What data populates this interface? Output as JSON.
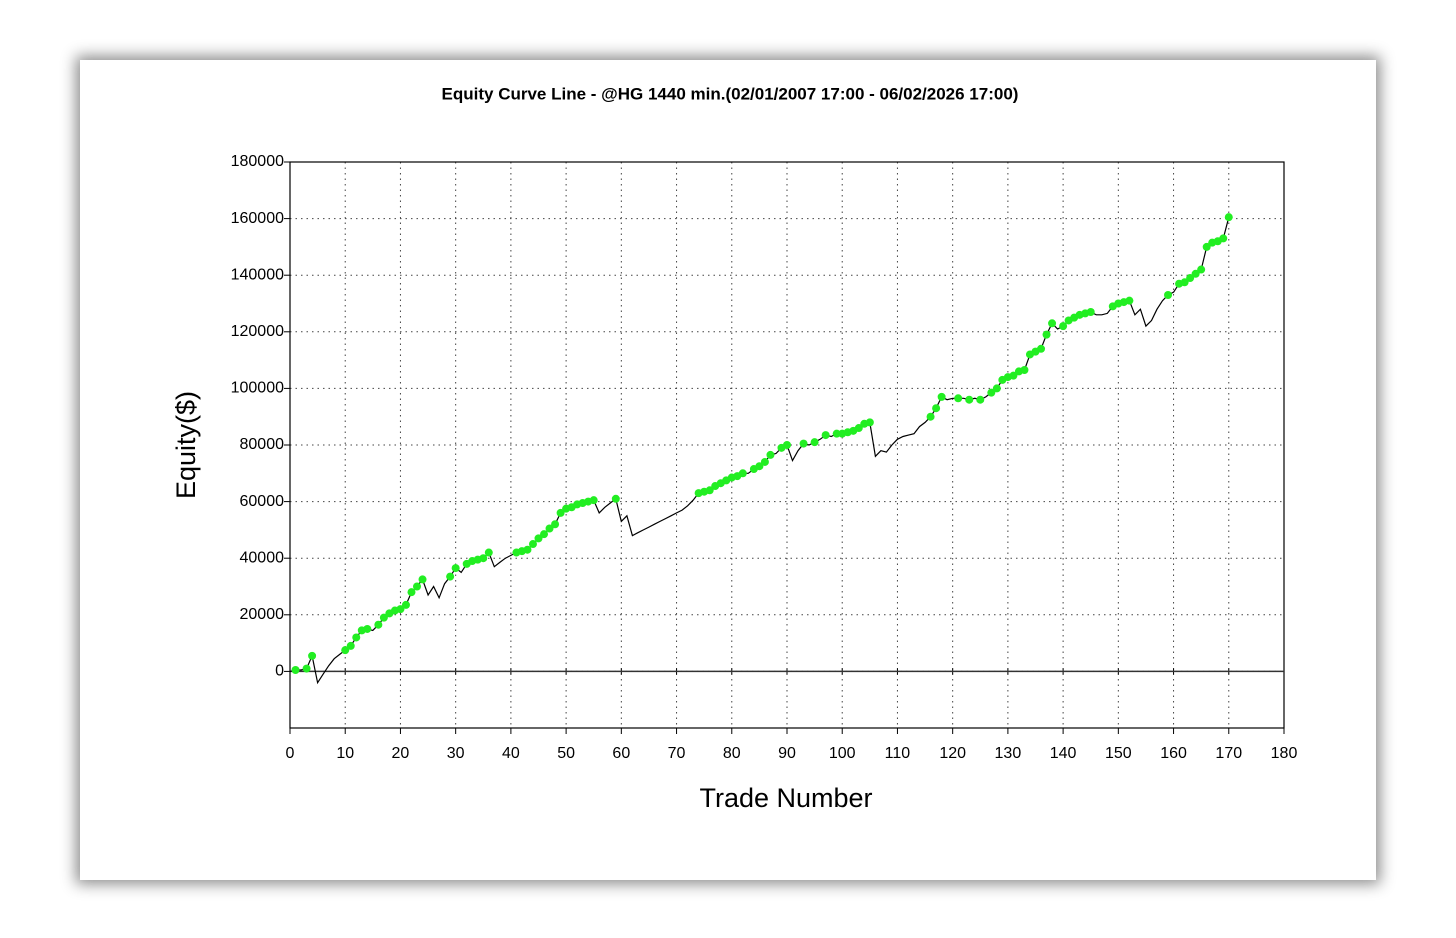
{
  "chart_data": {
    "type": "line",
    "title": "Equity Curve Line - @HG 1440 min.(02/01/2007 17:00 - 06/02/2026 17:00)",
    "x_label": "Trade Number",
    "y_label": "Equity($)",
    "xlim": [
      0,
      180
    ],
    "xticks": [
      0,
      10,
      20,
      30,
      40,
      50,
      60,
      70,
      80,
      90,
      100,
      110,
      120,
      130,
      140,
      150,
      160,
      170,
      180
    ],
    "ylim": [
      -20000,
      180000
    ],
    "yticks": [
      0,
      20000,
      40000,
      60000,
      80000,
      100000,
      120000,
      140000,
      160000,
      180000
    ],
    "grid": true,
    "x": [
      0,
      1,
      2,
      3,
      4,
      5,
      6,
      7,
      8,
      9,
      10,
      11,
      12,
      13,
      14,
      15,
      16,
      17,
      18,
      19,
      20,
      21,
      22,
      23,
      24,
      25,
      26,
      27,
      28,
      29,
      30,
      31,
      32,
      33,
      34,
      35,
      36,
      37,
      38,
      39,
      40,
      41,
      42,
      43,
      44,
      45,
      46,
      47,
      48,
      49,
      50,
      51,
      52,
      53,
      54,
      55,
      56,
      57,
      58,
      59,
      60,
      61,
      62,
      63,
      64,
      65,
      66,
      67,
      68,
      69,
      70,
      71,
      72,
      73,
      74,
      75,
      76,
      77,
      78,
      79,
      80,
      81,
      82,
      83,
      84,
      85,
      86,
      87,
      88,
      89,
      90,
      91,
      92,
      93,
      94,
      95,
      96,
      97,
      98,
      99,
      100,
      101,
      102,
      103,
      104,
      105,
      106,
      107,
      108,
      109,
      110,
      111,
      112,
      113,
      114,
      115,
      116,
      117,
      118,
      119,
      120,
      121,
      122,
      123,
      124,
      125,
      126,
      127,
      128,
      129,
      130,
      131,
      132,
      133,
      134,
      135,
      136,
      137,
      138,
      139,
      140,
      141,
      142,
      143,
      144,
      145,
      146,
      147,
      148,
      149,
      150,
      151,
      152,
      153,
      154,
      155,
      156,
      157,
      158,
      159,
      160,
      161,
      162,
      163,
      164,
      165,
      166,
      167,
      168,
      169,
      170
    ],
    "series": [
      {
        "color": "#000000",
        "values": [
          0,
          500,
          500,
          1000,
          5500,
          -4000,
          -1000,
          2000,
          4500,
          6000,
          7500,
          9000,
          12000,
          14500,
          15000,
          14500,
          16500,
          19000,
          20500,
          21500,
          22000,
          23500,
          28000,
          30000,
          32500,
          27000,
          30000,
          26000,
          31000,
          33500,
          36500,
          35000,
          38000,
          39000,
          39500,
          40000,
          42000,
          37000,
          38500,
          40000,
          41000,
          42000,
          42500,
          43000,
          45000,
          47000,
          48500,
          50500,
          52000,
          56000,
          57500,
          58000,
          59000,
          59500,
          60000,
          60500,
          56000,
          58000,
          59500,
          61000,
          53000,
          55000,
          48000,
          49000,
          50000,
          51000,
          52000,
          53000,
          54000,
          55000,
          56000,
          57000,
          58500,
          60500,
          63000,
          63500,
          64000,
          65500,
          66500,
          67500,
          68500,
          69000,
          70000,
          70000,
          71500,
          72500,
          74000,
          76500,
          77000,
          79000,
          80000,
          74500,
          78000,
          80500,
          80000,
          81000,
          82000,
          83500,
          83000,
          84000,
          84000,
          84500,
          85000,
          86000,
          87500,
          88000,
          76000,
          78000,
          77500,
          80000,
          82000,
          83000,
          83500,
          84000,
          86500,
          88000,
          90000,
          93000,
          97000,
          96000,
          96500,
          96500,
          96500,
          96000,
          96500,
          96000,
          97000,
          98500,
          100000,
          103000,
          104000,
          104500,
          106000,
          106500,
          112000,
          113000,
          114000,
          119000,
          123000,
          121000,
          122000,
          124000,
          125000,
          126000,
          126500,
          127000,
          126000,
          126000,
          126500,
          129000,
          130000,
          130500,
          131000,
          126000,
          128000,
          122000,
          124000,
          128000,
          131000,
          133000,
          134000,
          137000,
          137500,
          139000,
          140500,
          142000,
          150000,
          151500,
          152000,
          153000,
          160500
        ]
      },
      {
        "color": "#22ee22",
        "marker": true,
        "values": [
          null,
          500,
          null,
          1000,
          5500,
          null,
          null,
          null,
          null,
          null,
          7500,
          9000,
          12000,
          14500,
          15000,
          null,
          16500,
          19000,
          20500,
          21500,
          22000,
          23500,
          28000,
          30000,
          32500,
          null,
          null,
          null,
          null,
          33500,
          36500,
          null,
          38000,
          39000,
          39500,
          40000,
          42000,
          null,
          null,
          null,
          null,
          42000,
          42500,
          43000,
          45000,
          47000,
          48500,
          50500,
          52000,
          56000,
          57500,
          58000,
          59000,
          59500,
          60000,
          60500,
          null,
          null,
          null,
          61000,
          null,
          null,
          null,
          null,
          null,
          null,
          null,
          null,
          null,
          null,
          null,
          null,
          null,
          null,
          63000,
          63500,
          64000,
          65500,
          66500,
          67500,
          68500,
          69000,
          70000,
          null,
          71500,
          72500,
          74000,
          76500,
          null,
          79000,
          80000,
          null,
          null,
          80500,
          null,
          81000,
          null,
          83500,
          null,
          84000,
          84000,
          84500,
          85000,
          86000,
          87500,
          88000,
          null,
          null,
          null,
          null,
          null,
          null,
          null,
          null,
          null,
          null,
          90000,
          93000,
          97000,
          null,
          null,
          96500,
          null,
          96000,
          null,
          96000,
          null,
          98500,
          100000,
          103000,
          104000,
          104500,
          106000,
          106500,
          112000,
          113000,
          114000,
          119000,
          123000,
          null,
          122000,
          124000,
          125000,
          126000,
          126500,
          127000,
          null,
          null,
          null,
          129000,
          130000,
          130500,
          131000,
          null,
          null,
          null,
          null,
          null,
          null,
          133000,
          null,
          137000,
          137500,
          139000,
          140500,
          142000,
          150000,
          151500,
          152000,
          153000,
          160500
        ]
      }
    ]
  }
}
